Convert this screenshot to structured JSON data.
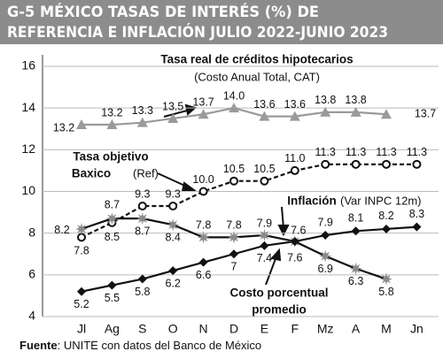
{
  "chart_data": {
    "type": "line",
    "title": [
      "G-5  MÉXICO TASAS DE INTERÉS (%) DE",
      "REFERENCIA E INFLACIÓN JULIO 2022-JUNIO 2023"
    ],
    "categories": [
      "Jl",
      "Ag",
      "S",
      "O",
      "N",
      "D",
      "E",
      "F",
      "Mz",
      "A",
      "M",
      "Jn"
    ],
    "ylim": [
      4,
      16
    ],
    "yticks": [
      4,
      6,
      8,
      10,
      12,
      14,
      16
    ],
    "grid": true,
    "series": [
      {
        "name_lines": [
          "Tasa real de créditos hipotecarios"
        ],
        "note": "(Costo Anual Total, CAT)",
        "color": "#9a9a9a",
        "marker": "triangle",
        "dash": false,
        "values": [
          13.2,
          13.2,
          13.3,
          13.5,
          13.7,
          14.0,
          13.6,
          13.6,
          13.8,
          13.8,
          13.7,
          null
        ],
        "value_labels": [
          "13.2",
          "13.2",
          "13.3",
          "13.5",
          "13.7",
          "14.0",
          "13.6",
          "13.6",
          "13.8",
          "13.8",
          "13.7",
          null
        ]
      },
      {
        "name_lines": [
          "Tasa objetivo",
          "Baxico"
        ],
        "note": "(Ref)",
        "color": "#111111",
        "marker": "circle",
        "dash": true,
        "values": [
          7.8,
          8.5,
          9.3,
          9.3,
          10.0,
          10.5,
          10.5,
          11.0,
          11.3,
          11.3,
          11.3,
          11.3
        ],
        "value_labels": [
          "7.8",
          "8.5",
          "9.3",
          "9.3",
          "10.0",
          "10.5",
          "10.5",
          "11.0",
          "11.3",
          "11.3",
          "11.3",
          "11.3"
        ]
      },
      {
        "name_lines": [
          "Inflación"
        ],
        "note": "(Var INPC 12m)",
        "color": "#111111",
        "marker_color": "#8a8a8a",
        "marker": "star",
        "dash": false,
        "values": [
          8.2,
          8.7,
          8.7,
          8.4,
          7.8,
          7.8,
          7.9,
          7.6,
          6.9,
          6.3,
          5.8,
          null
        ]
      },
      {
        "name_lines": [
          "Costo porcentual",
          "promedio"
        ],
        "color": "#111111",
        "marker": "diamond",
        "dash": false,
        "values": [
          5.2,
          5.5,
          5.8,
          6.2,
          6.6,
          7.0,
          7.4,
          7.6,
          7.9,
          8.1,
          8.2,
          8.3
        ]
      }
    ],
    "source": {
      "label": "Fuente",
      "text": ": UNITE con datos del Banco de México"
    }
  }
}
